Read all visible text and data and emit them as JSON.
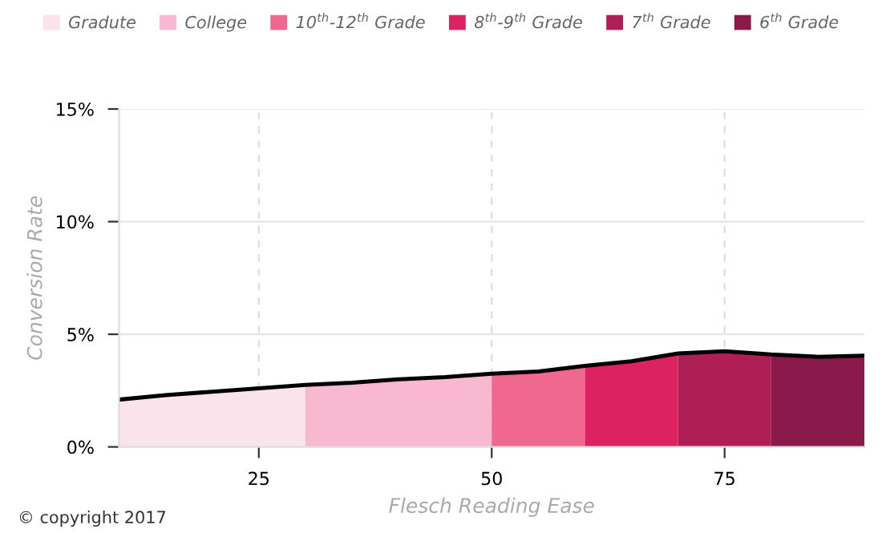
{
  "chart_data": {
    "type": "area",
    "xlabel": "Flesch Reading Ease",
    "ylabel": "Conversion Rate",
    "xlim": [
      10,
      90
    ],
    "ylim": [
      0,
      15
    ],
    "xticks": [
      25,
      50,
      75
    ],
    "yticks": [
      {
        "value": 0,
        "label": "0%"
      },
      {
        "value": 5,
        "label": "5%"
      },
      {
        "value": 10,
        "label": "10%"
      },
      {
        "value": 15,
        "label": "15%"
      }
    ],
    "grid": true,
    "legend": "top",
    "series": [
      {
        "name": "Gradute",
        "color": "#fae3ea",
        "x": [
          10,
          15,
          20,
          25,
          30
        ],
        "values": [
          2.1,
          2.3,
          2.45,
          2.6,
          2.75
        ]
      },
      {
        "name": "College",
        "color": "#f8b8d0",
        "x": [
          30,
          35,
          40,
          45,
          50
        ],
        "values": [
          2.75,
          2.85,
          3.0,
          3.1,
          3.25
        ]
      },
      {
        "name": "10$^{th}$-12$^{th}$ Grade",
        "color": "#f06890",
        "x": [
          50,
          55,
          60
        ],
        "values": [
          3.25,
          3.35,
          3.6
        ]
      },
      {
        "name": "8$^{th}$-9$^{th}$ Grade",
        "color": "#dc2260",
        "x": [
          60,
          65,
          70
        ],
        "values": [
          3.6,
          3.8,
          4.15
        ]
      },
      {
        "name": "7$^{th}$ Grade",
        "color": "#b01e56",
        "x": [
          70,
          75,
          80
        ],
        "values": [
          4.15,
          4.25,
          4.1
        ]
      },
      {
        "name": "6$^{th}$ Grade",
        "color": "#8a1a4c",
        "x": [
          80,
          85,
          90
        ],
        "values": [
          4.1,
          4.0,
          4.05
        ]
      },
      {
        "type": "line",
        "color": "#000000",
        "x": [
          10,
          15,
          20,
          25,
          30,
          35,
          40,
          45,
          50,
          55,
          60,
          65,
          70,
          75,
          80,
          85,
          90
        ],
        "values": [
          2.1,
          2.3,
          2.45,
          2.6,
          2.75,
          2.85,
          3.0,
          3.1,
          3.25,
          3.35,
          3.6,
          3.8,
          4.15,
          4.25,
          4.1,
          4.0,
          4.05
        ]
      }
    ],
    "annotations": [
      "© copyright 2017"
    ]
  }
}
